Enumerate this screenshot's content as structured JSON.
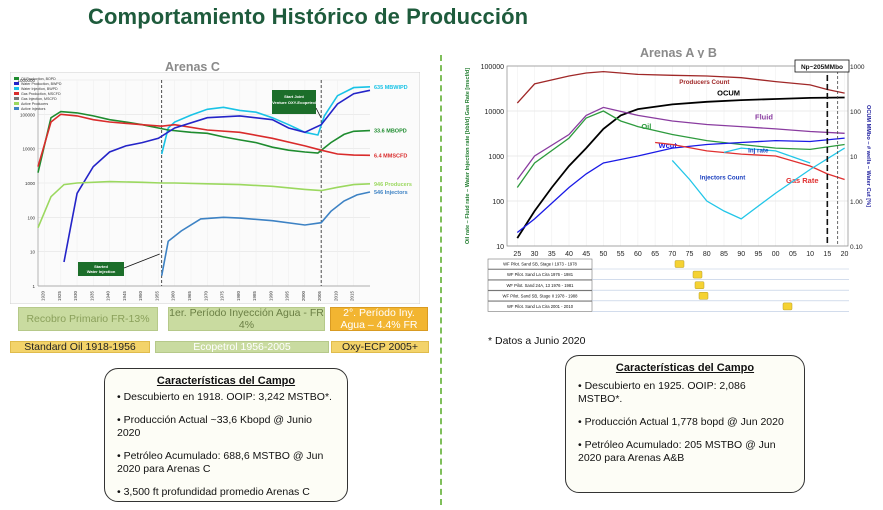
{
  "page": {
    "title": "Comportamiento Histórico  de Producción"
  },
  "left_panel": {
    "title": "Arenas C",
    "legend": [
      "Oil Production, BOPD",
      "Water Production, BWPD",
      "Water Injection, BWPD",
      "Gas Production, MSCFD",
      "Gas Injection, MSCFD",
      "Active Producers",
      "Active Injectors"
    ],
    "annotations": {
      "injection": "Started Water Injection",
      "joint_venture": "Start Joint Venture OXY-Ecopetrol"
    },
    "periods_top": [
      {
        "label": "Recobro Primario FR-13%",
        "bg": "#c9dba0",
        "border": "#b6c98a",
        "color": "#8aa05b"
      },
      {
        "label": "1er. Período Inyección Agua - FR 4%",
        "bg": "#c9dba0",
        "border": "#b6c98a",
        "color": "#6b7f45"
      },
      {
        "label": "2°. Período Iny. Agua – 4.4% FR",
        "bg": "#f2b531",
        "border": "#d99b22",
        "color": "#ffffff"
      }
    ],
    "periods_bottom": [
      {
        "label": "Standard Oil 1918-1956",
        "bg": "#f3d36a",
        "border": "#e0bc4c",
        "color": "#222"
      },
      {
        "label": "Ecopetrol 1956-2005",
        "bg": "#c9dba0",
        "border": "#b6c98a",
        "color": "#ffffff"
      },
      {
        "label": "Oxy-ECP 2005+",
        "bg": "#f3d36a",
        "border": "#e0bc4c",
        "color": "#222"
      }
    ]
  },
  "right_panel": {
    "title": "Arenas A y B",
    "box_label": "Np~205MMbo",
    "note": "* Datos a Junio 2020",
    "pilots": [
      "WF Pilot. Sand SB, Stage I 1973 - 1978",
      "WF Pilot. Sand La Cira 1976 - 1981",
      "WF Pilot. Sand 24A, 13 1976 - 1981",
      "WF Pilot. Sand SB, Stage II 1978 - 1988",
      "WF Pilot. Sand La Cira 2001 - 2010"
    ]
  },
  "left_box": {
    "header": "Características del Campo",
    "items": [
      "Descubierto en 1918. OOIP: 3,242 MSTBO*.",
      "Producción Actual ~33,6 Kbopd @ Junio 2020",
      "Petróleo Acumulado: 688,6 MSTBO @ Jun 2020 para Arenas C",
      "3,500 ft profundidad promedio Arenas C"
    ]
  },
  "right_box": {
    "header": "Características del Campo",
    "items": [
      "Descubierto en 1925. OOIP: 2,086 MSTBO*.",
      "Producción Actual 1,778 bopd @ Jun 2020",
      "Petróleo Acumulado: 205 MSTBO @ Jun 2020 para Arenas A&B"
    ]
  },
  "chart_data": [
    {
      "type": "line",
      "title": "Arenas C",
      "scale": "log",
      "ylim": [
        1,
        1000000
      ],
      "xlim": [
        1918,
        2020
      ],
      "y_ticks": [
        "1000000",
        "100000",
        "10000",
        "1000",
        "100",
        "10",
        "1"
      ],
      "x_ticks": [
        "1920",
        "1925",
        "1930",
        "1935",
        "1940",
        "1945",
        "1950",
        "1955",
        "1960",
        "1965",
        "1970",
        "1975",
        "1980",
        "1985",
        "1990",
        "1995",
        "2000",
        "2005",
        "2010",
        "2015"
      ],
      "series": [
        {
          "name": "Water Injection, BWPD",
          "label": "635 MBWIPD",
          "color": "#19c3e6",
          "points": [
            [
              1956,
              7000
            ],
            [
              1958,
              40000
            ],
            [
              1960,
              60000
            ],
            [
              1965,
              95000
            ],
            [
              1970,
              140000
            ],
            [
              1975,
              160000
            ],
            [
              1980,
              130000
            ],
            [
              1985,
              115000
            ],
            [
              1990,
              80000
            ],
            [
              1995,
              50000
            ],
            [
              2000,
              30000
            ],
            [
              2004,
              25000
            ],
            [
              2006,
              90000
            ],
            [
              2010,
              350000
            ],
            [
              2015,
              600000
            ],
            [
              2020,
              635000
            ]
          ]
        },
        {
          "name": "Oil Production, BOPD",
          "label": "33.6 MBOPD",
          "color": "#1e8c2f",
          "points": [
            [
              1918,
              2000
            ],
            [
              1922,
              80000
            ],
            [
              1925,
              120000
            ],
            [
              1930,
              110000
            ],
            [
              1935,
              90000
            ],
            [
              1940,
              70000
            ],
            [
              1945,
              60000
            ],
            [
              1950,
              50000
            ],
            [
              1955,
              40000
            ],
            [
              1958,
              35000
            ],
            [
              1965,
              30000
            ],
            [
              1970,
              28000
            ],
            [
              1975,
              22000
            ],
            [
              1980,
              18000
            ],
            [
              1985,
              15000
            ],
            [
              1990,
              11000
            ],
            [
              1995,
              9000
            ],
            [
              2000,
              8000
            ],
            [
              2004,
              7500
            ],
            [
              2008,
              15000
            ],
            [
              2012,
              26000
            ],
            [
              2015,
              32000
            ],
            [
              2020,
              33600
            ]
          ]
        },
        {
          "name": "Gas Production, MSCFD",
          "label": "6.4 MMSCFD",
          "color": "#d92b2b",
          "points": [
            [
              1918,
              3000
            ],
            [
              1922,
              60000
            ],
            [
              1925,
              100000
            ],
            [
              1930,
              90000
            ],
            [
              1935,
              70000
            ],
            [
              1940,
              60000
            ],
            [
              1950,
              50000
            ],
            [
              1956,
              45000
            ],
            [
              1960,
              50000
            ],
            [
              1970,
              35000
            ],
            [
              1980,
              30000
            ],
            [
              1990,
              20000
            ],
            [
              2000,
              12000
            ],
            [
              2005,
              9000
            ],
            [
              2010,
              7000
            ],
            [
              2015,
              6500
            ],
            [
              2020,
              6400
            ]
          ]
        },
        {
          "name": "Water Production, BWPD",
          "label": "",
          "color": "#2424c8",
          "points": [
            [
              1926,
              5
            ],
            [
              1928,
              50
            ],
            [
              1930,
              500
            ],
            [
              1935,
              3000
            ],
            [
              1940,
              8000
            ],
            [
              1945,
              12000
            ],
            [
              1950,
              15000
            ],
            [
              1955,
              20000
            ],
            [
              1960,
              40000
            ],
            [
              1970,
              80000
            ],
            [
              1980,
              90000
            ],
            [
              1990,
              70000
            ],
            [
              1995,
              40000
            ],
            [
              2000,
              30000
            ],
            [
              2005,
              50000
            ],
            [
              2010,
              200000
            ],
            [
              2015,
              400000
            ],
            [
              2020,
              500000
            ]
          ]
        },
        {
          "name": "Active Producers",
          "label": "946 Producers",
          "color": "#9bd85f",
          "points": [
            [
              1918,
              50
            ],
            [
              1922,
              400
            ],
            [
              1926,
              900
            ],
            [
              1930,
              1000
            ],
            [
              1940,
              1100
            ],
            [
              1950,
              1050
            ],
            [
              1956,
              1000
            ],
            [
              1960,
              1000
            ],
            [
              1970,
              950
            ],
            [
              1980,
              900
            ],
            [
              1990,
              800
            ],
            [
              2000,
              650
            ],
            [
              2005,
              600
            ],
            [
              2010,
              750
            ],
            [
              2015,
              900
            ],
            [
              2020,
              946
            ]
          ]
        },
        {
          "name": "Active Injectors",
          "label": "546 Injectors",
          "color": "#3d82c4",
          "points": [
            [
              1956,
              2
            ],
            [
              1958,
              20
            ],
            [
              1962,
              40
            ],
            [
              1968,
              90
            ],
            [
              1975,
              100
            ],
            [
              1980,
              95
            ],
            [
              1990,
              80
            ],
            [
              2000,
              60
            ],
            [
              2005,
              70
            ],
            [
              2008,
              150
            ],
            [
              2012,
              300
            ],
            [
              2016,
              450
            ],
            [
              2020,
              546
            ]
          ]
        }
      ]
    },
    {
      "type": "line",
      "title": "Arenas A y B",
      "scale": "log",
      "ylabel": "Oil rate – Fluid rate – Water Injection rate [bbl/d] Gas Rate [mscf/d]",
      "ylabel_right": "OCUM MMbo – # wells – Water Cut [%]",
      "ylim": [
        10,
        100000
      ],
      "y_ticks": [
        "100000",
        "10000",
        "1000",
        "100",
        "10"
      ],
      "y2_ticks": [
        "1000",
        "100",
        "10",
        "1.00",
        "0.10"
      ],
      "x_ticks": [
        "25",
        "30",
        "35",
        "40",
        "45",
        "50",
        "55",
        "60",
        "65",
        "70",
        "75",
        "80",
        "85",
        "90",
        "95",
        "00",
        "05",
        "10",
        "15",
        "20"
      ],
      "series": [
        {
          "name": "Producers Count",
          "color": "#a02828",
          "label": "Producers Count",
          "points": [
            [
              25,
              15000
            ],
            [
              30,
              40000
            ],
            [
              40,
              60000
            ],
            [
              45,
              70000
            ],
            [
              50,
              75000
            ],
            [
              55,
              70000
            ],
            [
              60,
              65000
            ],
            [
              70,
              62000
            ],
            [
              80,
              60000
            ],
            [
              90,
              55000
            ],
            [
              100,
              45000
            ],
            [
              110,
              38000
            ],
            [
              115,
              30000
            ],
            [
              120,
              25000
            ]
          ]
        },
        {
          "name": "OCUM",
          "color": "#000000",
          "label": "OCUM",
          "points": [
            [
              25,
              15
            ],
            [
              30,
              60
            ],
            [
              35,
              200
            ],
            [
              40,
              600
            ],
            [
              45,
              1500
            ],
            [
              50,
              4000
            ],
            [
              55,
              8000
            ],
            [
              60,
              11000
            ],
            [
              70,
              14000
            ],
            [
              80,
              16000
            ],
            [
              90,
              17500
            ],
            [
              100,
              18500
            ],
            [
              110,
              19500
            ],
            [
              120,
              20000
            ]
          ]
        },
        {
          "name": "Fluid",
          "color": "#8a3ca0",
          "label": "Fluid",
          "points": [
            [
              25,
              300
            ],
            [
              30,
              1000
            ],
            [
              40,
              3000
            ],
            [
              45,
              8000
            ],
            [
              50,
              12000
            ],
            [
              60,
              8000
            ],
            [
              70,
              6000
            ],
            [
              80,
              5000
            ],
            [
              90,
              4500
            ],
            [
              100,
              4000
            ],
            [
              110,
              3500
            ],
            [
              120,
              3200
            ]
          ]
        },
        {
          "name": "Oil",
          "color": "#2e9b3e",
          "label": "Oil",
          "points": [
            [
              25,
              200
            ],
            [
              30,
              700
            ],
            [
              40,
              2500
            ],
            [
              45,
              7000
            ],
            [
              50,
              10000
            ],
            [
              55,
              6000
            ],
            [
              60,
              4500
            ],
            [
              70,
              3000
            ],
            [
              80,
              2200
            ],
            [
              90,
              1800
            ],
            [
              100,
              1500
            ],
            [
              110,
              1400
            ],
            [
              120,
              1800
            ]
          ]
        },
        {
          "name": "Wcut",
          "color": "#1a1ae6",
          "label": "Wcut",
          "points": [
            [
              25,
              20
            ],
            [
              30,
              40
            ],
            [
              40,
              200
            ],
            [
              45,
              400
            ],
            [
              50,
              700
            ],
            [
              60,
              1000
            ],
            [
              70,
              1500
            ],
            [
              80,
              1800
            ],
            [
              90,
              2000
            ],
            [
              100,
              2200
            ],
            [
              110,
              2100
            ],
            [
              120,
              2500
            ]
          ]
        },
        {
          "name": "Gas Rate",
          "color": "#e03030",
          "label": "Gas Rate",
          "points": [
            [
              65,
              2000
            ],
            [
              70,
              1800
            ],
            [
              80,
              1300
            ],
            [
              90,
              1100
            ],
            [
              100,
              1000
            ],
            [
              110,
              600
            ],
            [
              115,
              400
            ],
            [
              120,
              300
            ]
          ]
        },
        {
          "name": "Injectors Count",
          "color": "#22c6e8",
          "label": "Injectors Count",
          "points": [
            [
              70,
              800
            ],
            [
              75,
              300
            ],
            [
              80,
              100
            ],
            [
              85,
              60
            ],
            [
              90,
              40
            ],
            [
              100,
              150
            ],
            [
              110,
              500
            ],
            [
              120,
              1500
            ]
          ]
        },
        {
          "name": "Inj rate",
          "color": "#22c6e8",
          "label": "Inj rate",
          "points": [
            [
              85,
              1200
            ],
            [
              90,
              1500
            ],
            [
              100,
              1300
            ],
            [
              110,
              700
            ]
          ]
        }
      ]
    }
  ]
}
